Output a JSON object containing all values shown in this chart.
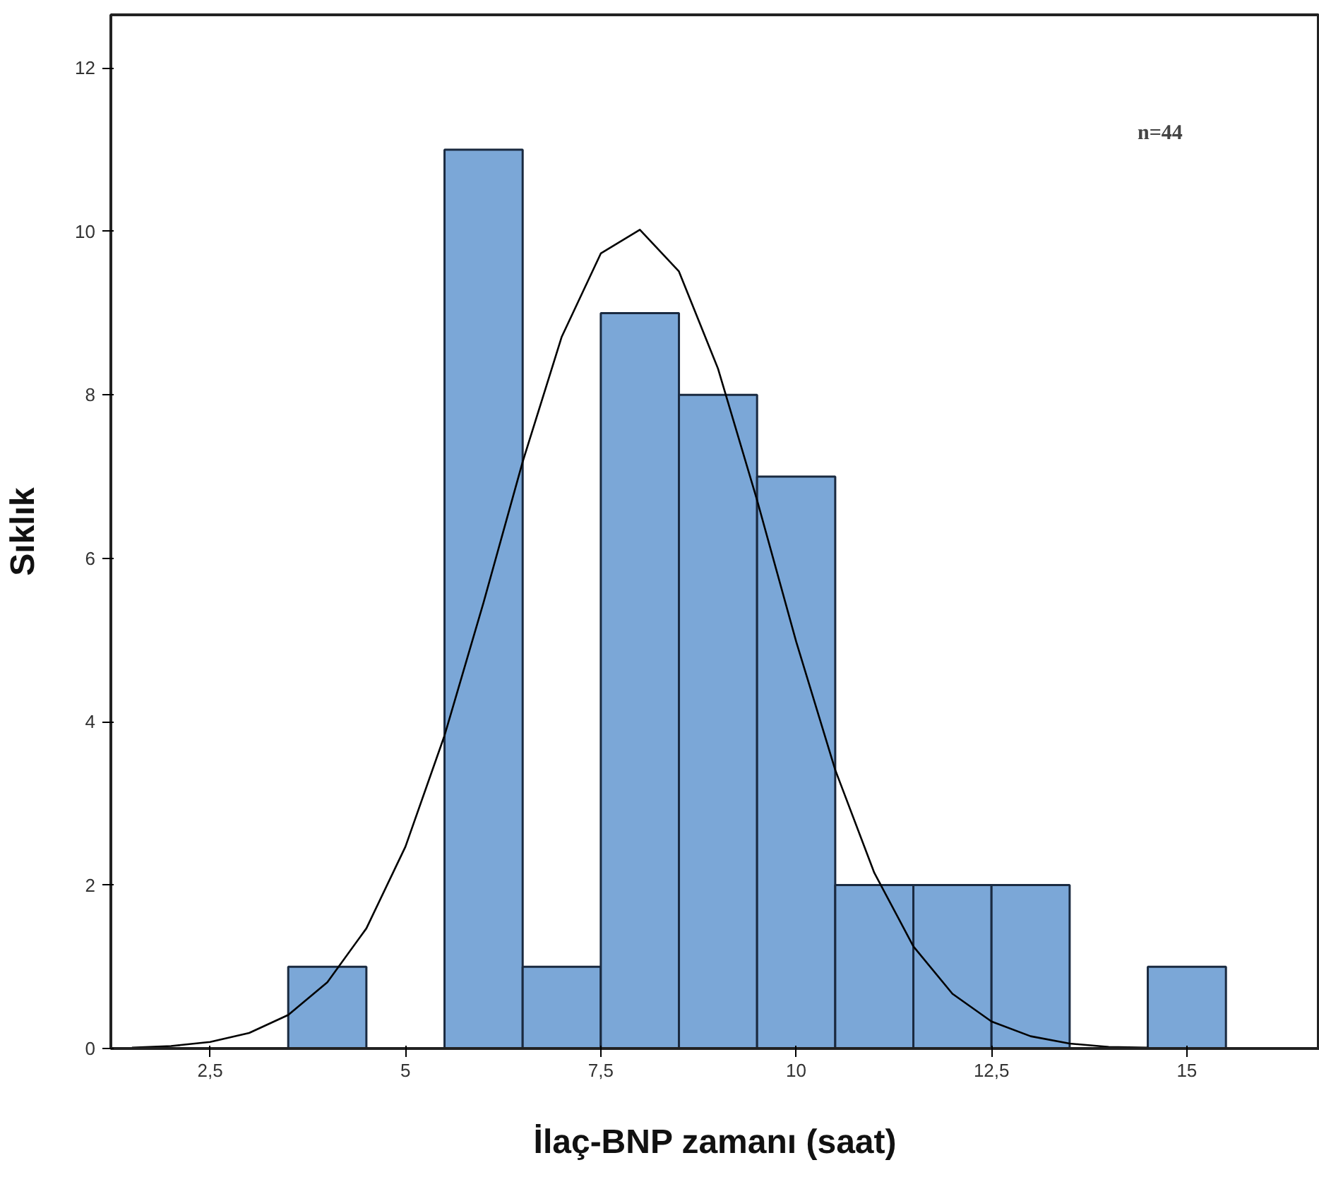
{
  "chart_data": {
    "type": "histogram",
    "xlabel": "İlaç-BNP zamanı (saat)",
    "ylabel": "Sıklık",
    "annotations": [
      "n=44"
    ],
    "bins": [
      3.5,
      4.5,
      5.5,
      6.5,
      7.5,
      8.5,
      9.5,
      10.5,
      11.5,
      12.5,
      13.5,
      14.5,
      15.5
    ],
    "values": [
      1,
      0,
      11,
      1,
      9,
      8,
      7,
      2,
      2,
      2,
      0,
      1
    ],
    "color": "#7ba7d7",
    "series": [
      {
        "type": "line",
        "color": "#000000",
        "x": [
          1.5,
          2,
          2.5,
          3,
          3.5,
          4,
          4.5,
          5,
          5.5,
          6,
          6.5,
          7,
          7.5,
          8,
          8.5,
          9,
          9.5,
          10,
          10.5,
          11,
          11.5,
          12,
          12.5,
          13,
          13.5,
          14,
          14.5
        ],
        "values": [
          0.01,
          0.03,
          0.08,
          0.19,
          0.41,
          0.81,
          1.47,
          2.47,
          3.83,
          5.46,
          7.18,
          8.71,
          9.73,
          10.02,
          9.51,
          8.32,
          6.71,
          4.98,
          3.41,
          2.15,
          1.25,
          0.67,
          0.33,
          0.15,
          0.06,
          0.02,
          0.01
        ]
      }
    ],
    "xlim": [
      1.23,
      16.7
    ],
    "ylim": [
      0,
      12.65
    ],
    "xticks": [
      {
        "value": 2.5,
        "label": "2,5"
      },
      5,
      {
        "value": 7.5,
        "label": "7,5"
      },
      10,
      {
        "value": 12.5,
        "label": "12,5"
      },
      15
    ],
    "yticks": [
      0,
      2,
      4,
      6,
      8,
      10,
      12
    ],
    "grid": false
  }
}
